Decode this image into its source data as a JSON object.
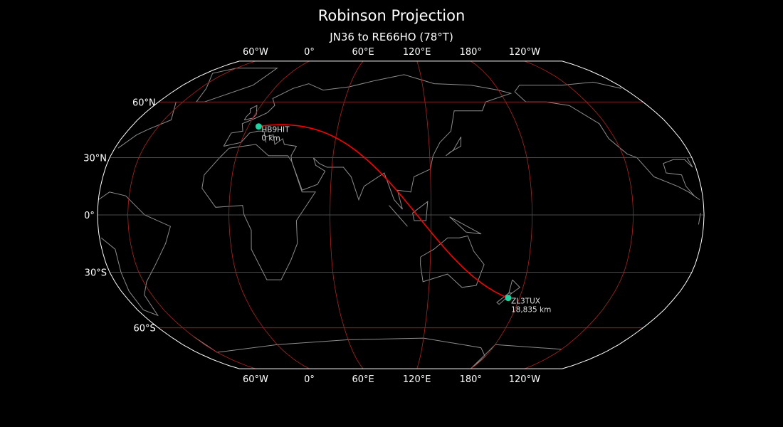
{
  "title": "Robinson Projection",
  "subtitle": "JN36 to RE66HO (78°T)",
  "map": {
    "projection": "robinson",
    "central_longitude": 102,
    "meridian_labels": [
      "60°W",
      "0°",
      "60°E",
      "120°E",
      "180°",
      "120°W"
    ],
    "meridian_longitudes": [
      -60,
      0,
      60,
      120,
      180,
      -120
    ],
    "parallel_labels": [
      "60°N",
      "30°N",
      "0°",
      "30°S",
      "60°S"
    ],
    "parallel_latitudes": [
      60,
      30,
      0,
      -30,
      -60
    ],
    "colors": {
      "background": "#000000",
      "coastline": "#8c8c8c",
      "graticule_red": "#b22222",
      "graticule_gray": "#666666",
      "path": "#ff0000",
      "station": "#1fd3a0",
      "outline": "#ffffff"
    }
  },
  "stations": [
    {
      "call": "HB9HIT",
      "distance": "0 km",
      "lat": 46.5,
      "lon": 7.0
    },
    {
      "call": "ZL3TUX",
      "distance": "18,835 km",
      "lat": -43.6,
      "lon": 172.6
    }
  ]
}
